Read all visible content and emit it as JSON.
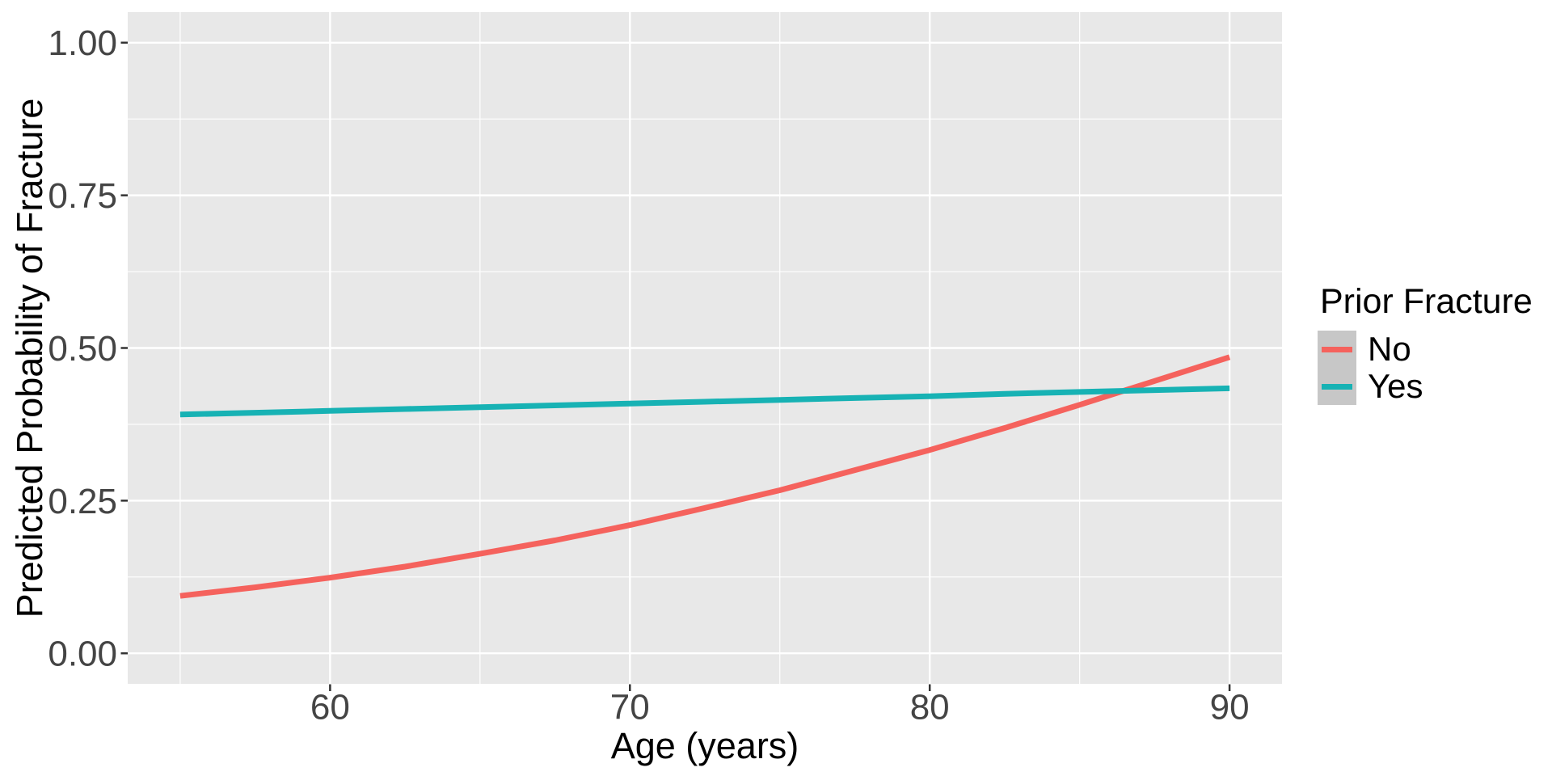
{
  "style": {
    "page_bg": "#FFFFFF",
    "panel_bg": "#E8E8E8",
    "grid_color": "#FFFFFF",
    "tick_mark_color": "#333333",
    "tick_label_color": "#444444",
    "axis_title_color": "#000000",
    "legend_key_bg": "#C7C7C7",
    "legend_text_color": "#000000",
    "series_no_color": "#F5625D",
    "series_yes_color": "#17B2B4"
  },
  "chart_data": {
    "type": "line",
    "title": "",
    "xlabel": "Age (years)",
    "ylabel": "Predicted Probability of Fracture",
    "xlim": [
      55,
      90
    ],
    "ylim": [
      0,
      1
    ],
    "expand": 0.05,
    "grid": "white major and minor gridlines on grey panel (ggplot style)",
    "legend_position": "right",
    "x_ticks": [
      {
        "v": 60,
        "label": "60"
      },
      {
        "v": 70,
        "label": "70"
      },
      {
        "v": 80,
        "label": "80"
      },
      {
        "v": 90,
        "label": "90"
      }
    ],
    "x_minor_ticks": [
      55,
      65,
      75,
      85
    ],
    "y_ticks": [
      {
        "v": 0.0,
        "label": "0.00"
      },
      {
        "v": 0.25,
        "label": "0.25"
      },
      {
        "v": 0.5,
        "label": "0.50"
      },
      {
        "v": 0.75,
        "label": "0.75"
      },
      {
        "v": 1.0,
        "label": "1.00"
      }
    ],
    "y_minor_ticks": [
      0.125,
      0.375,
      0.625,
      0.875
    ],
    "legend": {
      "title": "Prior Fracture"
    },
    "x": [
      55,
      57.5,
      60,
      62.5,
      65,
      67.5,
      70,
      72.5,
      75,
      77.5,
      80,
      82.5,
      85,
      87.5,
      90
    ],
    "series": [
      {
        "name": "No",
        "color": "#F5625D",
        "values": [
          0.094,
          0.108,
          0.124,
          0.142,
          0.163,
          0.185,
          0.21,
          0.238,
          0.267,
          0.3,
          0.333,
          0.369,
          0.407,
          0.446,
          0.485
        ]
      },
      {
        "name": "Yes",
        "color": "#17B2B4",
        "values": [
          0.391,
          0.394,
          0.397,
          0.4,
          0.403,
          0.406,
          0.409,
          0.412,
          0.415,
          0.418,
          0.421,
          0.425,
          0.428,
          0.431,
          0.434
        ]
      }
    ],
    "annotations": {
      "crossing_age": 86.5,
      "crossing_probability": 0.43
    }
  }
}
